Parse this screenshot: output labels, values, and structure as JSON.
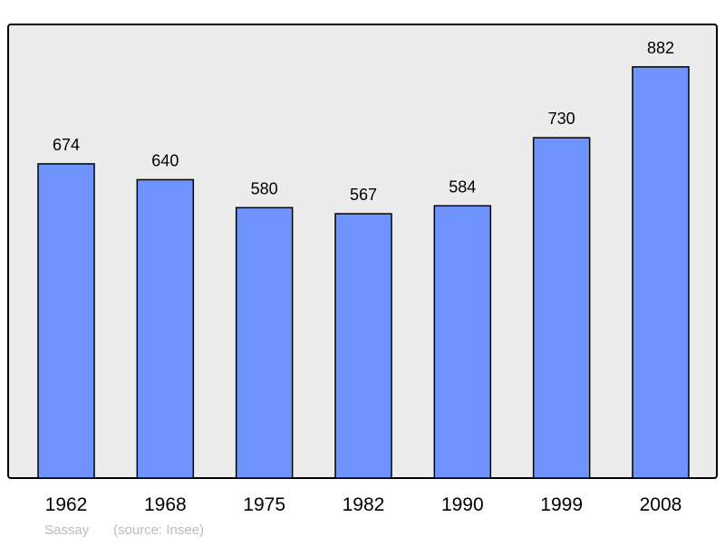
{
  "chart_data": {
    "type": "bar",
    "categories": [
      "1962",
      "1968",
      "1975",
      "1982",
      "1990",
      "1999",
      "2008"
    ],
    "values": [
      674,
      640,
      580,
      567,
      584,
      730,
      882
    ],
    "title": "",
    "xlabel": "",
    "ylabel": "",
    "ylim": [
      0,
      973
    ],
    "grid": false,
    "data_labels": true,
    "colors": {
      "bar": "#7094ff",
      "bar_stroke": "#000000",
      "plot_background": "#ececec",
      "footer_text": "#bbbbbb"
    }
  },
  "footer": {
    "place": "Sassay",
    "source": "(source: Insee)"
  }
}
